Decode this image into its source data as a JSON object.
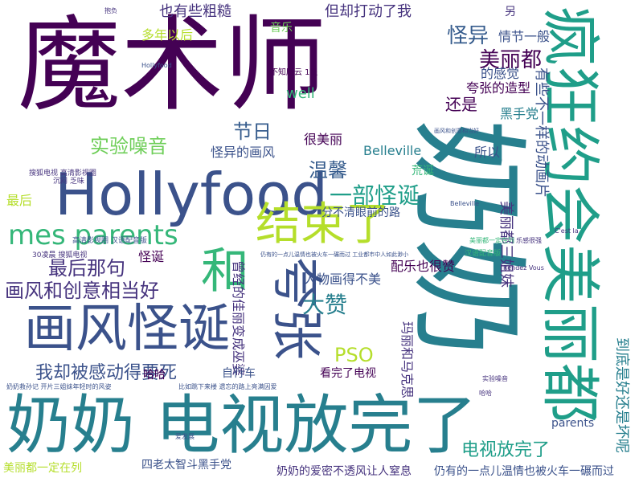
{
  "colors": {
    "background": "#ffffff",
    "purple": "#440154",
    "indigo": "#46337e",
    "slate": "#3b528b",
    "blue": "#365c8d",
    "teal": "#277f8e",
    "cyan": "#1f9e89",
    "green": "#35b779",
    "lime": "#6ece58",
    "yellow_green": "#b5de2b",
    "yellow": "#c8d72a"
  },
  "words": {
    "mo_shu_shi": "魔术师",
    "nai_nai_vertical": "奶奶",
    "nai_nai_dian_shi_fang_wan_le": "奶奶 电视放完了",
    "hollyfood": "Hollyfood",
    "feng_kuang": "疯狂约会美丽都",
    "hua_feng_guai_dan": "画风怪诞",
    "jie_shu_le": "结束了",
    "kua_zhang": "夸张",
    "he": "和",
    "mes_parents": "mes parents",
    "mei_li_du_top": "美丽都",
    "guai_yi": "怪异",
    "yi_bu_guai_dan": "一部怪诞",
    "hua_feng_he_chuang_yi": "画风和创意相当好",
    "zui_hou_na_ju": "最后那句",
    "shi_yan_zao_yin": "实验噪音",
    "jie_ri": "节日",
    "wen_xin": "温馨",
    "da_zan": "大赞",
    "wo_que_bei_gan_dong": "我却被感动得要死",
    "pso": "PSO",
    "dian_shi_fang_wan_le": "电视放完了",
    "ye_you_xie_cu_cao": "也有些粗糙",
    "dan_que_da_dong_le_wo": "但却打动了我",
    "qing_jie_yi_ban": "情节一般",
    "duo_nian_yi_hou": "多年以后",
    "yin_yue": "音乐",
    "well": "well",
    "de_gan_jue": "的感觉",
    "kua_zhang_de_zao_xing": "夸张的造型",
    "hai_shi": "还是",
    "hei_shou_dang": "黑手党",
    "hen_mei_li": "很美丽",
    "guai_yi_de_hua_feng": "怪异的画风",
    "belleville": "Belleville",
    "suo_yi": "所以",
    "huang_dan": "荒诞",
    "fen_bu_qing": "分不清眼前的路",
    "zui_hou": "最后",
    "pei_le_ye_hen_zan": "配乐也很赞",
    "ren_wu_hua_de_bu_mei": "人物画得不美",
    "ceng_jing_de_jia_li": "曾经的佳丽变成巫婆",
    "ma_li_he_ma_ke_si": "玛丽和马克思",
    "kan_wan_le_dian_shi": "看完了电视",
    "zi_xing_che": "自行车",
    "ha_ha": "哈哈",
    "parents": "parents",
    "si_lao_tai": "四老太智斗黑手党",
    "mei_li_du_yi_ding": "美丽都一定在列",
    "nai_nai_de_ai_mi": "奶奶的爱密不透风让人窒息",
    "reng_you_de": "仍有的一点儿温情也被火车一碾而过",
    "you_xie_bu_yi_yang": "有些不一样的动画片",
    "dao_di_shi_hao_huan": "到底是好还是坏呢",
    "mei_li_du_san_jie_mei": "美丽都三姐妹",
    "guai_dan_small": "怪诞",
    "ling_yi": "另",
    "gao_qing_dian_ying": "高清影视圈 汉语配音版",
    "sou_hu_dian_shi": "搜狐电视 高清影视圈",
    "sou_hu_30": "30凌晨 搜狐电视",
    "nai_nai_jiu_sun_zi": "奶奶救孙记 开片三姐妹年轻时的风姿",
    "bi_ru_tiao_xia": "比如跳下来楼 遗忘的路上亮满因爱",
    "reng_you_small": "仍有的一点儿温情也被火车一碾而过 工业都市中人如此渺小",
    "hua_feng_he_chuang_yi_small": "画风和创意相当好",
    "bu_zhi_suo_yun": "不知所云 1星",
    "mei_li_du_yi_ding_small": "美丽都一定在列",
    "shi_yan_small": "实验噪音",
    "ha_ha_small": "哈哈",
    "hollyfood_small": "Hollyfood",
    "belleville_small": "Belleville",
    "le_gan_small": "乐感很强",
    "chen_men": "沉闷 乏味",
    "ai_fa_zhan": "爱发展",
    "rendez_vous": "Rendez Vous",
    "dong_hua_dian_ying": "汉语配音版",
    "cest_la": "C'est la",
    "bao_fu": "抱负"
  }
}
